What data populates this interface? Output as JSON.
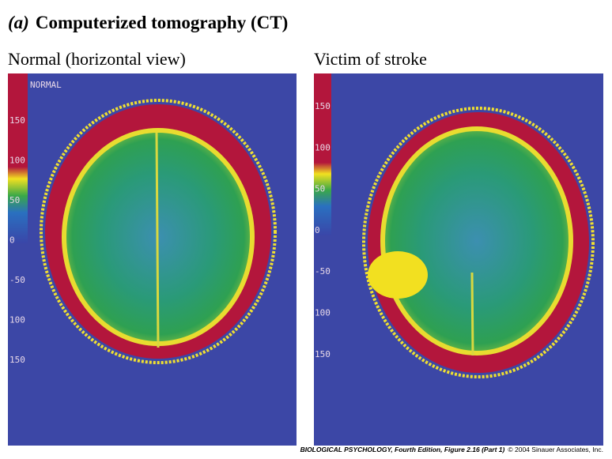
{
  "header": {
    "label": "(a)",
    "title": "Computerized tomography (CT)"
  },
  "panels": [
    {
      "caption": "Normal (horizontal view)",
      "tag": "NORMAL",
      "scale": [
        "150",
        "100",
        "50",
        "0",
        "-50",
        "100",
        "150"
      ]
    },
    {
      "caption": "Victim of stroke",
      "scale": [
        "150",
        "100",
        "50",
        "0",
        "-50",
        "100",
        "150"
      ]
    }
  ],
  "footer": {
    "source": "BIOLOGICAL PSYCHOLOGY, Fourth Edition, Figure 2.16 (Part 1)",
    "copyright": "© 2004 Sinauer Associates, Inc."
  }
}
